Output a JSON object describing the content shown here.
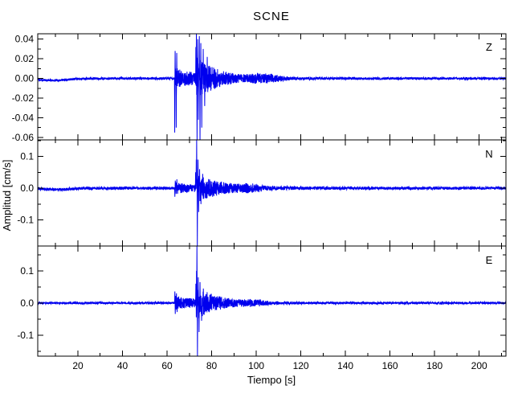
{
  "chart_data": {
    "type": "line",
    "title": "SCNE",
    "xlabel": "Tiempo [s]",
    "ylabel": "Amplitud [cm/s]",
    "x_range": [
      2,
      212
    ],
    "x_major_ticks": [
      20,
      40,
      60,
      80,
      100,
      120,
      140,
      160,
      180,
      200
    ],
    "x_major_tick_labels": [
      "20",
      "40",
      "60",
      "80",
      "100",
      "120",
      "140",
      "160",
      "180",
      "200"
    ],
    "x_minor_tick_step": 10,
    "grid": false,
    "legend": "none",
    "background_color": "#ffffff",
    "axis_color": "#000000",
    "trace_color": "#0000ee",
    "panels": [
      {
        "label": "Z",
        "ylim": [
          -0.0625,
          0.0455
        ],
        "y_major_ticks": [
          0.04,
          0.02,
          0.0,
          -0.02,
          -0.04,
          -0.06
        ],
        "y_tick_labels": [
          "0.04",
          "0.02",
          "0.00",
          "-0.02",
          "-0.04",
          "-0.06"
        ],
        "y_minor_step": 0.01,
        "signal": {
          "noise_amp": 0.0012,
          "baseline_dip": {
            "t": 9,
            "amp": -0.002,
            "width": 6
          },
          "p_arrival": 63.4,
          "p_amp": 0.011,
          "s_arrival": 73.0,
          "s_amp": 0.022,
          "s_decay": 10,
          "bumps": [
            {
              "t": 101,
              "amp": 0.0025,
              "width": 4
            },
            {
              "t": 108,
              "amp": 0.0018,
              "width": 4
            }
          ],
          "spikes": [
            [
              63.45,
              -0.055
            ],
            [
              63.6,
              0.028
            ],
            [
              64.1,
              -0.05
            ],
            [
              64.35,
              0.026
            ],
            [
              72.9,
              0.032
            ],
            [
              73.15,
              0.05
            ],
            [
              73.45,
              -0.066
            ],
            [
              73.75,
              0.04
            ],
            [
              74.05,
              -0.042
            ],
            [
              74.45,
              0.043
            ],
            [
              74.75,
              -0.066
            ],
            [
              75.15,
              0.036
            ],
            [
              75.55,
              -0.05
            ],
            [
              76.2,
              0.03
            ],
            [
              76.9,
              -0.028
            ],
            [
              78.0,
              0.022
            ]
          ]
        }
      },
      {
        "label": "N",
        "ylim": [
          -0.182,
          0.152
        ],
        "y_major_ticks": [
          0.1,
          0.0,
          -0.1
        ],
        "y_tick_labels": [
          "0.1",
          "0.0",
          "-0.1"
        ],
        "y_minor_step": 0.05,
        "signal": {
          "noise_amp": 0.0045,
          "baseline_dip": {
            "t": 10,
            "amp": -0.004,
            "width": 6
          },
          "p_arrival": 63.4,
          "p_amp": 0.016,
          "s_arrival": 73.0,
          "s_amp": 0.042,
          "s_decay": 12,
          "bumps": [
            {
              "t": 97,
              "amp": 0.006,
              "width": 3
            }
          ],
          "spikes": [
            [
              63.5,
              -0.027
            ],
            [
              63.7,
              0.024
            ],
            [
              64.4,
              0.028
            ],
            [
              72.8,
              0.05
            ],
            [
              73.1,
              0.09
            ],
            [
              73.3,
              0.16
            ],
            [
              73.55,
              -0.19
            ],
            [
              73.85,
              0.09
            ],
            [
              74.2,
              -0.075
            ],
            [
              74.6,
              0.06
            ],
            [
              75.2,
              -0.05
            ],
            [
              76.0,
              0.045
            ]
          ]
        }
      },
      {
        "label": "E",
        "ylim": [
          -0.165,
          0.177
        ],
        "y_major_ticks": [
          0.1,
          0.0,
          -0.1
        ],
        "y_tick_labels": [
          "0.1",
          "0.0",
          "-0.1"
        ],
        "y_minor_step": 0.05,
        "signal": {
          "noise_amp": 0.0035,
          "baseline_dip": null,
          "p_arrival": 63.4,
          "p_amp": 0.022,
          "s_arrival": 73.0,
          "s_amp": 0.05,
          "s_decay": 10,
          "bumps": [
            {
              "t": 99,
              "amp": 0.005,
              "width": 4
            }
          ],
          "spikes": [
            [
              63.5,
              0.036
            ],
            [
              63.65,
              -0.034
            ],
            [
              64.2,
              0.03
            ],
            [
              64.5,
              -0.028
            ],
            [
              72.9,
              0.06
            ],
            [
              73.2,
              0.1
            ],
            [
              73.4,
              0.185
            ],
            [
              73.65,
              -0.17
            ],
            [
              74.0,
              0.08
            ],
            [
              74.35,
              -0.09
            ],
            [
              74.8,
              0.065
            ],
            [
              75.5,
              -0.055
            ],
            [
              76.3,
              0.045
            ]
          ]
        }
      }
    ]
  }
}
